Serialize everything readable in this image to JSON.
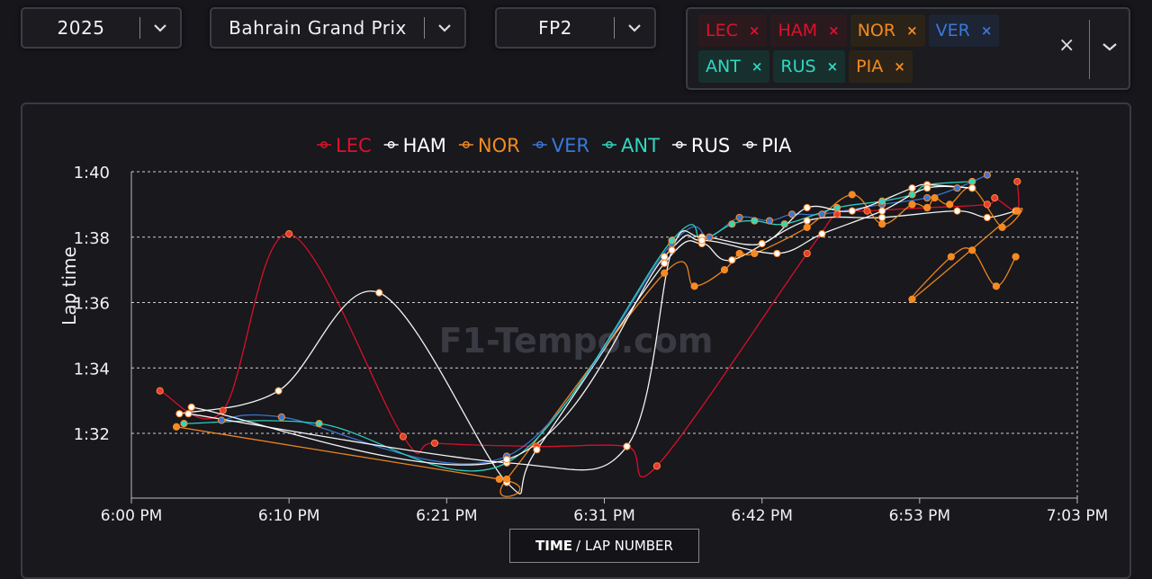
{
  "controls": {
    "year": "2025",
    "event": "Bahrain Grand Prix",
    "session": "FP2",
    "drivers": [
      {
        "code": "LEC",
        "color": "#e0102a",
        "bg": "#2a1a1e"
      },
      {
        "code": "HAM",
        "color": "#e0102a",
        "bg": "#2a1a1e"
      },
      {
        "code": "NOR",
        "color": "#f58a1f",
        "bg": "#2c2318"
      },
      {
        "code": "VER",
        "color": "#3a78d8",
        "bg": "#1d2434"
      },
      {
        "code": "ANT",
        "color": "#2fd8c0",
        "bg": "#17302e"
      },
      {
        "code": "RUS",
        "color": "#2fd8c0",
        "bg": "#17302e"
      },
      {
        "code": "PIA",
        "color": "#f58a1f",
        "bg": "#2c2318"
      }
    ],
    "remove_symbol": "×",
    "clear_symbol": "×"
  },
  "x_axis_button": {
    "bold": "TIME",
    "rest": "/ LAP NUMBER"
  },
  "watermark": "F1-Tempo.com",
  "chart_data": {
    "type": "line",
    "ylabel": "Lap time",
    "xlabel": "",
    "x_unit": "minutes after 6:00 PM",
    "xlim": [
      0,
      63
    ],
    "ylim": [
      90.5,
      100
    ],
    "x_ticks": [
      {
        "value": 0,
        "label": "6:00 PM"
      },
      {
        "value": 10.5,
        "label": "6:10 PM"
      },
      {
        "value": 21,
        "label": "6:21 PM"
      },
      {
        "value": 31.5,
        "label": "6:31 PM"
      },
      {
        "value": 42,
        "label": "6:42 PM"
      },
      {
        "value": 52.5,
        "label": "6:53 PM"
      },
      {
        "value": 63,
        "label": "7:03 PM"
      }
    ],
    "y_ticks": [
      {
        "value": 92,
        "label": "1:32"
      },
      {
        "value": 94,
        "label": "1:34"
      },
      {
        "value": 96,
        "label": "1:36"
      },
      {
        "value": 98,
        "label": "1:38"
      },
      {
        "value": 100,
        "label": "1:40"
      }
    ],
    "legend": "top",
    "series": [
      {
        "name": "LEC",
        "color": "#e0102a",
        "dot": "#e83a3a",
        "points": [
          [
            1.9,
            93.3
          ],
          [
            6.1,
            92.7
          ],
          [
            10.5,
            98.1
          ],
          [
            18.1,
            91.9
          ],
          [
            20.2,
            91.7
          ],
          [
            27,
            91.6
          ],
          [
            33,
            91.6
          ],
          [
            35,
            91.0
          ],
          [
            45,
            97.5
          ],
          [
            47,
            98.7
          ],
          [
            49,
            98.8
          ],
          [
            53,
            98.9
          ],
          [
            57,
            99.0
          ],
          [
            57.5,
            99.2
          ],
          [
            59,
            98.8
          ],
          [
            59,
            99.7
          ]
        ]
      },
      {
        "name": "HAM",
        "color": "#ffffff",
        "dot": "#ffffff",
        "points": [
          [
            3.2,
            92.6
          ],
          [
            9.8,
            93.3
          ],
          [
            16.5,
            96.3
          ],
          [
            25,
            90.5
          ],
          [
            27,
            91.5
          ],
          [
            35.5,
            97.2
          ],
          [
            38,
            97.8
          ],
          [
            40,
            97.3
          ],
          [
            45,
            98.5
          ],
          [
            50,
            98.6
          ],
          [
            55,
            98.8
          ],
          [
            57,
            98.6
          ],
          [
            58.9,
            98.8
          ]
        ]
      },
      {
        "name": "NOR",
        "color": "#f58a1f",
        "dot": "#f58a1f",
        "points": [
          [
            3,
            92.2
          ],
          [
            24.5,
            90.6
          ],
          [
            25,
            90.6
          ],
          [
            35.5,
            96.9
          ],
          [
            37.5,
            96.5
          ],
          [
            39.5,
            97.0
          ],
          [
            40.5,
            97.5
          ],
          [
            41.5,
            97.5
          ],
          [
            45,
            98.3
          ],
          [
            48,
            99.3
          ],
          [
            50,
            98.4
          ],
          [
            52,
            99.0
          ],
          [
            53,
            98.9
          ],
          [
            53.5,
            99.2
          ],
          [
            54.5,
            99.0
          ],
          [
            56,
            99.5
          ],
          [
            58,
            98.3
          ],
          [
            59,
            98.8
          ],
          [
            52,
            96.1
          ],
          [
            54.6,
            97.4
          ],
          [
            56,
            97.6
          ],
          [
            57.6,
            96.5
          ],
          [
            58.9,
            97.4
          ]
        ]
      },
      {
        "name": "VER",
        "color": "#3a78d8",
        "dot": "#3a78d8",
        "points": [
          [
            6,
            92.4
          ],
          [
            10,
            92.5
          ],
          [
            25,
            91.3
          ],
          [
            36,
            97.8
          ],
          [
            38.5,
            98.0
          ],
          [
            40.5,
            98.6
          ],
          [
            42.5,
            98.5
          ],
          [
            44,
            98.7
          ],
          [
            46,
            98.7
          ],
          [
            50,
            99.0
          ],
          [
            53,
            99.2
          ],
          [
            55,
            99.5
          ],
          [
            57,
            99.9
          ]
        ]
      },
      {
        "name": "ANT",
        "color": "#2fd8c0",
        "dot": "#2fd8c0",
        "points": [
          [
            3.5,
            92.3
          ],
          [
            12.5,
            92.3
          ],
          [
            25,
            91.1
          ],
          [
            36,
            97.9
          ],
          [
            38,
            97.9
          ],
          [
            40,
            98.4
          ],
          [
            41.5,
            98.5
          ],
          [
            43.5,
            98.4
          ],
          [
            47,
            98.9
          ],
          [
            50,
            99.1
          ],
          [
            52,
            99.3
          ],
          [
            53,
            99.6
          ],
          [
            56,
            99.7
          ]
        ]
      },
      {
        "name": "RUS",
        "color": "#ffffff",
        "dot": "#ffffff",
        "points": [
          [
            3.8,
            92.6
          ],
          [
            25,
            91.1
          ],
          [
            33,
            91.6
          ],
          [
            36,
            97.6
          ],
          [
            38,
            98.0
          ],
          [
            42,
            97.8
          ],
          [
            45,
            98.9
          ],
          [
            48,
            98.8
          ],
          [
            52,
            99.5
          ],
          [
            53,
            99.6
          ],
          [
            56,
            99.5
          ]
        ]
      },
      {
        "name": "PIA",
        "color": "#ffffff",
        "dot": "#ffffff",
        "points": [
          [
            4,
            92.8
          ],
          [
            25,
            91.2
          ],
          [
            35.5,
            97.4
          ],
          [
            38,
            97.9
          ],
          [
            43,
            97.5
          ],
          [
            46,
            98.1
          ],
          [
            50,
            98.8
          ],
          [
            53,
            99.5
          ],
          [
            56,
            99.5
          ]
        ]
      }
    ]
  }
}
